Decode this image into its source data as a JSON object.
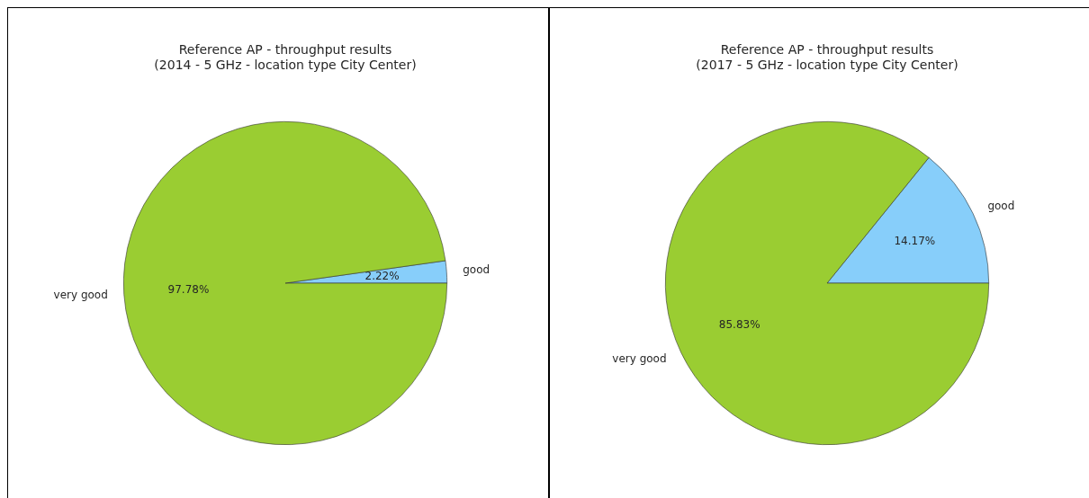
{
  "chart_data": [
    {
      "type": "pie",
      "title": "Reference AP - throughput results\n(2014 - 5 GHz - location type City Center)",
      "categories": [
        "good",
        "very good"
      ],
      "values": [
        2.22,
        97.78
      ],
      "value_labels": [
        "2.22%",
        "97.78%"
      ],
      "colors": [
        "#87cefa",
        "#9acd32"
      ],
      "legend": false
    },
    {
      "type": "pie",
      "title": "Reference AP - throughput results\n(2017 - 5 GHz - location type City Center)",
      "categories": [
        "good",
        "very good"
      ],
      "values": [
        14.17,
        85.83
      ],
      "value_labels": [
        "14.17%",
        "85.83%"
      ],
      "colors": [
        "#87cefa",
        "#9acd32"
      ],
      "legend": false
    }
  ]
}
